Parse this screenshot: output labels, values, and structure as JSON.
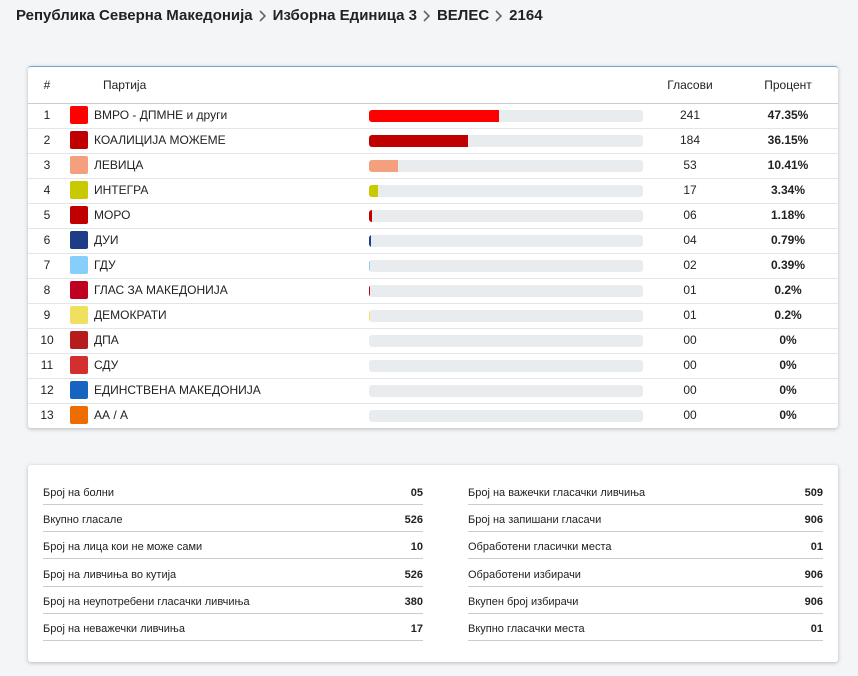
{
  "breadcrumb": [
    "Република Северна Македонија",
    "Изборна Единица 3",
    "ВЕЛЕС",
    "2164"
  ],
  "table": {
    "headers": [
      "#",
      "Партија",
      "Гласови",
      "Процент"
    ],
    "rows": [
      {
        "num": "1",
        "party": "ВМРО - ДПМНЕ и други",
        "votes": "241",
        "percent": {
          "value": 47.35,
          "label": "47.35%"
        },
        "color": "#ff0000"
      },
      {
        "num": "2",
        "party": "КОАЛИЦИЈА МОЖЕМЕ",
        "votes": "184",
        "percent": {
          "value": 36.15,
          "label": "36.15%"
        },
        "color": "#c00000"
      },
      {
        "num": "3",
        "party": "ЛЕВИЦА",
        "votes": "53",
        "percent": {
          "value": 10.41,
          "label": "10.41%"
        },
        "color": "#f4a07f"
      },
      {
        "num": "4",
        "party": "ИНТЕГРА",
        "votes": "17",
        "percent": {
          "value": 3.34,
          "label": "3.34%"
        },
        "color": "#c9c900"
      },
      {
        "num": "5",
        "party": "МОРО",
        "votes": "06",
        "percent": {
          "value": 1.18,
          "label": "1.18%"
        },
        "color": "#c00000"
      },
      {
        "num": "6",
        "party": "ДУИ",
        "votes": "04",
        "percent": {
          "value": 0.79,
          "label": "0.79%"
        },
        "color": "#1f3c88"
      },
      {
        "num": "7",
        "party": "ГДУ",
        "votes": "02",
        "percent": {
          "value": 0.39,
          "label": "0.39%"
        },
        "color": "#87cefa"
      },
      {
        "num": "8",
        "party": "ГЛАС ЗА МАКЕДОНИЈА",
        "votes": "01",
        "percent": {
          "value": 0.2,
          "label": "0.2%"
        },
        "color": "#c00020"
      },
      {
        "num": "9",
        "party": "ДЕМОКРАТИ",
        "votes": "01",
        "percent": {
          "value": 0.2,
          "label": "0.2%"
        },
        "color": "#f0e060"
      },
      {
        "num": "10",
        "party": "ДПА",
        "votes": "00",
        "percent": {
          "value": 0,
          "label": "0%"
        }
      },
      {
        "num": "11",
        "party": "СДУ",
        "votes": "00",
        "percent": {
          "value": 0,
          "label": "0%"
        }
      },
      {
        "num": "12",
        "party": "ЕДИНСТВЕНА МАКЕДОНИЈА",
        "votes": "00",
        "percent": {
          "value": 0,
          "label": "0%"
        }
      },
      {
        "num": "13",
        "party": "АА / А",
        "votes": "00",
        "percent": {
          "value": 0,
          "label": "0%"
        }
      }
    ]
  },
  "stats": {
    "left": [
      {
        "label": "Број на болни",
        "value": "05"
      },
      {
        "label": "Вкупно гласале",
        "value": "526"
      },
      {
        "label": "Број на лица кои не може сами",
        "value": "10"
      },
      {
        "label": "Број на ливчиња во кутија",
        "value": "526"
      },
      {
        "label": "Број на неупотребени гласачки ливчиња",
        "value": "380"
      },
      {
        "label": "Број на неважечки ливчиња",
        "value": "17"
      }
    ],
    "right": [
      {
        "label": "Број на важечки гласачки ливчиња",
        "value": "509"
      },
      {
        "label": "Број на запишани гласачи",
        "value": "906"
      },
      {
        "label": "Обработени гласички места",
        "value": "01"
      },
      {
        "label": "Обработени избирачи",
        "value": "906"
      },
      {
        "label": "Вкупен број избирачи",
        "value": "906"
      },
      {
        "label": "Вкупно гласачки места",
        "value": "01"
      }
    ]
  }
}
